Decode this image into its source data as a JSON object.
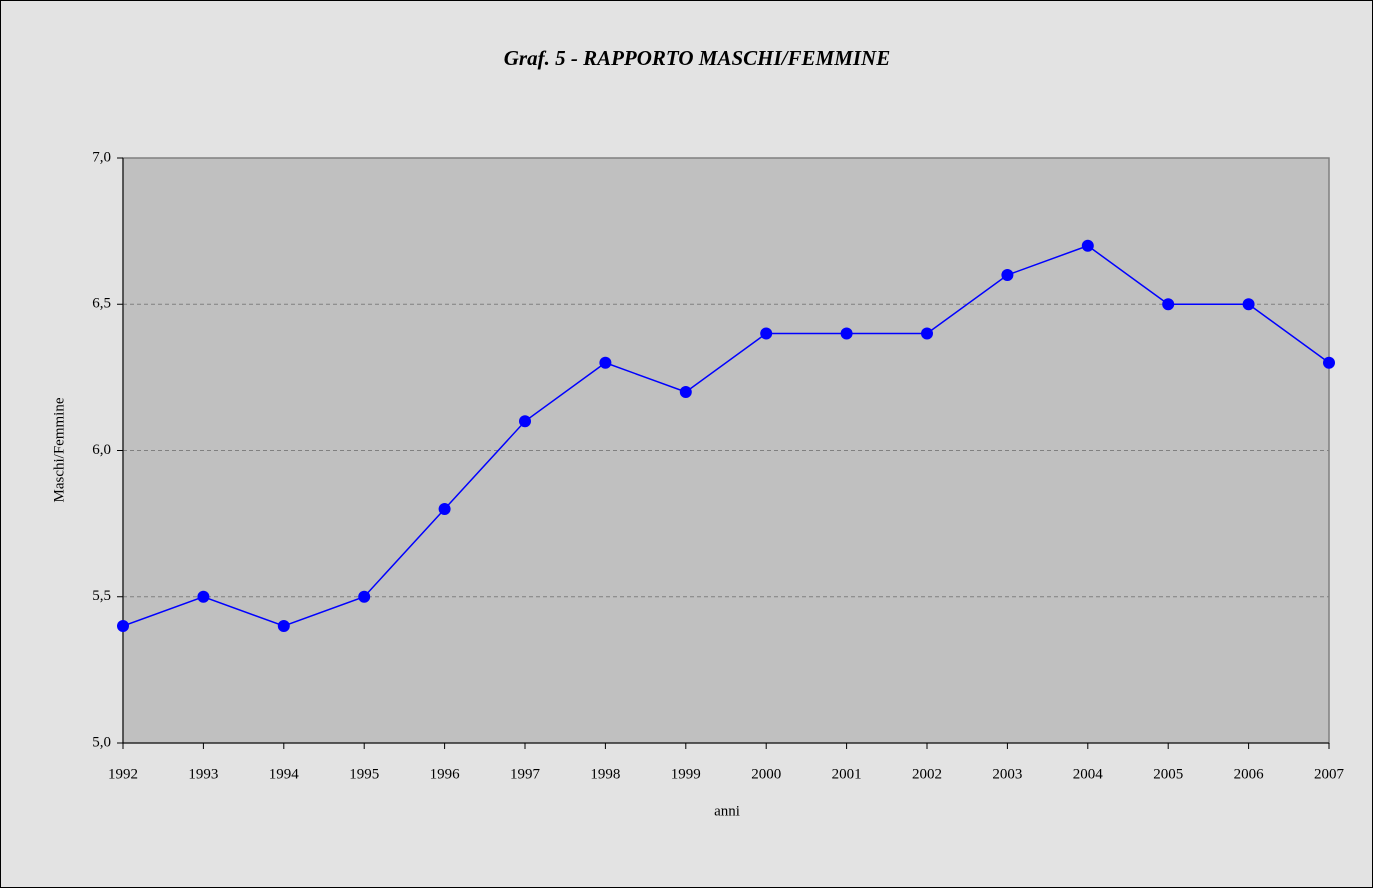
{
  "chart_data": {
    "type": "line",
    "title": "Graf. 5 - RAPPORTO MASCHI/FEMMINE",
    "x_label": "anni",
    "y_label": "Maschi/Femmine",
    "categories": [
      "1992",
      "1993",
      "1994",
      "1995",
      "1996",
      "1997",
      "1998",
      "1999",
      "2000",
      "2001",
      "2002",
      "2003",
      "2004",
      "2005",
      "2006",
      "2007"
    ],
    "values": [
      5.4,
      5.5,
      5.4,
      5.5,
      5.8,
      6.1,
      6.3,
      6.2,
      6.4,
      6.4,
      6.4,
      6.6,
      6.7,
      6.5,
      6.5,
      6.3
    ],
    "color": "#0000ff",
    "ylim": [
      5.0,
      7.0
    ],
    "yticks": [
      {
        "value": 5.0,
        "label": "5,0"
      },
      {
        "value": 5.5,
        "label": "5,5"
      },
      {
        "value": 6.0,
        "label": "6,0"
      },
      {
        "value": 6.5,
        "label": "6,5"
      },
      {
        "value": 7.0,
        "label": "7,0"
      }
    ],
    "grid": true
  }
}
